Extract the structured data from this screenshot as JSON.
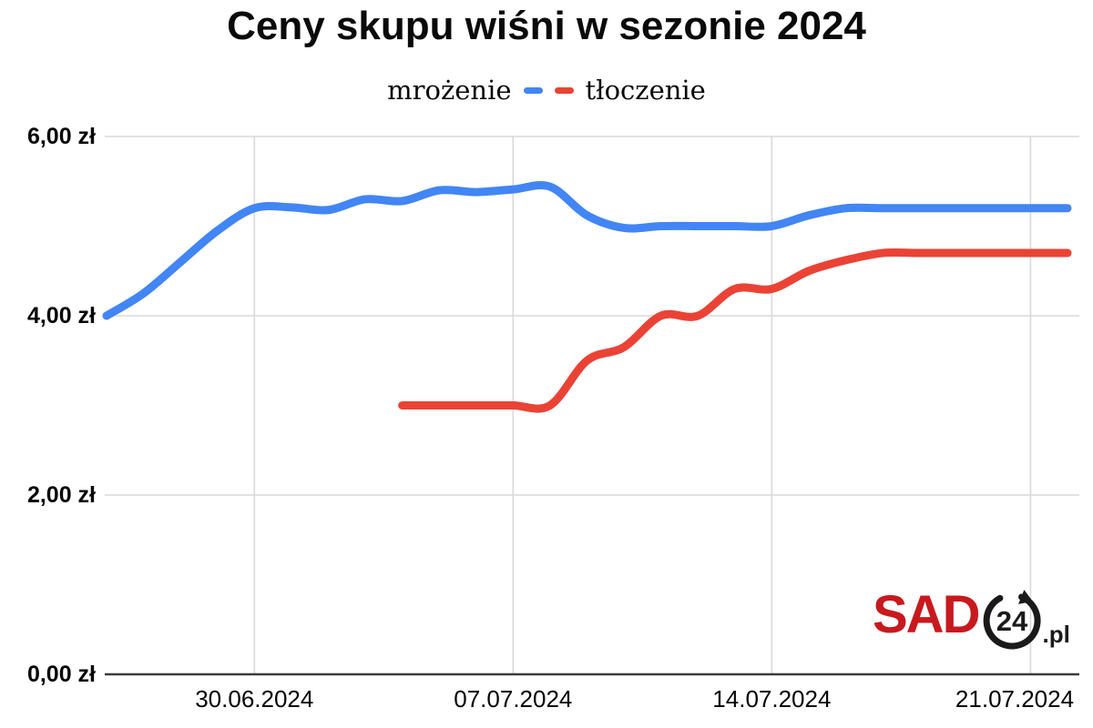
{
  "title": "Ceny skupu wiśni w sezonie 2024",
  "legend": {
    "series1": "mrożenie",
    "series2": "tłoczenie"
  },
  "logo": {
    "text": "SAD",
    "badge": "24",
    "suffix": ".pl",
    "brand_color": "#c8191e",
    "dark_color": "#1a1a1a"
  },
  "chart_data": {
    "type": "line",
    "title": "Ceny skupu wiśni w sezonie 2024",
    "smooth": true,
    "grid": true,
    "legend_position": "top",
    "ylabel": "",
    "xlabel": "",
    "ylim": [
      0,
      6
    ],
    "y_ticks": [
      {
        "value": 6,
        "label": "6,00 zł"
      },
      {
        "value": 4,
        "label": "4,00 zł"
      },
      {
        "value": 2,
        "label": "2,00 zł"
      },
      {
        "value": 0,
        "label": "0,00 zł"
      }
    ],
    "x_total_days": 26,
    "x_start_date": "26.06.2024",
    "x_end_date": "22.07.2024",
    "x_ticks": [
      {
        "offset": 4,
        "label": "30.06.2024"
      },
      {
        "offset": 11,
        "label": "07.07.2024"
      },
      {
        "offset": 18,
        "label": "14.07.2024"
      },
      {
        "offset": 25,
        "label": "21.07.2024"
      }
    ],
    "series": [
      {
        "name": "mrożenie",
        "color": "#4285f4",
        "start_offset": 0,
        "start_date": "26.06.2024",
        "values": [
          4.0,
          4.25,
          4.6,
          4.95,
          5.2,
          5.21,
          5.18,
          5.3,
          5.28,
          5.4,
          5.38,
          5.41,
          5.44,
          5.12,
          4.98,
          5.0,
          5.0,
          5.0,
          5.0,
          5.12,
          5.2,
          5.2,
          5.2,
          5.2,
          5.2,
          5.2,
          5.2
        ]
      },
      {
        "name": "tłoczenie",
        "color": "#ea4335",
        "start_offset": 8,
        "start_date": "04.07.2024",
        "values": [
          3.0,
          3.0,
          3.0,
          3.0,
          3.0,
          3.5,
          3.65,
          4.0,
          4.0,
          4.3,
          4.3,
          4.5,
          4.62,
          4.7,
          4.7,
          4.7,
          4.7,
          4.7,
          4.7
        ]
      }
    ]
  }
}
